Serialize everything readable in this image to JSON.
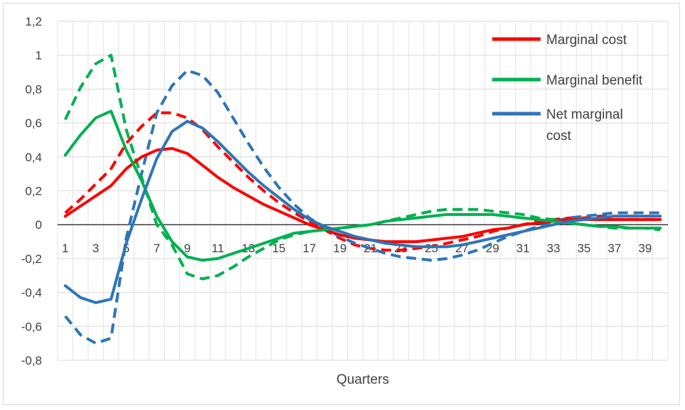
{
  "chart_data": {
    "type": "line",
    "title": "",
    "xlabel": "Quarters",
    "ylabel": "",
    "x": [
      1,
      2,
      3,
      4,
      5,
      6,
      7,
      8,
      9,
      10,
      11,
      12,
      13,
      14,
      15,
      16,
      17,
      18,
      19,
      20,
      21,
      22,
      23,
      24,
      25,
      26,
      27,
      28,
      29,
      30,
      31,
      32,
      33,
      34,
      35,
      36,
      37,
      38,
      39,
      40
    ],
    "x_tick_labels": [
      "1",
      "3",
      "5",
      "7",
      "9",
      "11",
      "13",
      "15",
      "17",
      "19",
      "21",
      "23",
      "25",
      "27",
      "29",
      "31",
      "33",
      "35",
      "37",
      "39"
    ],
    "y_tick_labels": [
      "1,2",
      "1",
      "0,8",
      "0,6",
      "0,4",
      "0,2",
      "0",
      "-0,2",
      "-0,4",
      "-0,6",
      "-0,8"
    ],
    "ylim": [
      -0.8,
      1.2
    ],
    "grid": true,
    "legend_position": "top-right",
    "legend": [
      {
        "label_lines": [
          "Marginal cost"
        ],
        "color": "#ff0000"
      },
      {
        "label_lines": [
          "Marginal benefit"
        ],
        "color": "#00b050"
      },
      {
        "label_lines": [
          "Net marginal",
          "cost"
        ],
        "color": "#2e75b6"
      }
    ],
    "series": [
      {
        "name": "Marginal cost",
        "color": "#ff0000",
        "style": "solid",
        "values": [
          0.05,
          0.11,
          0.17,
          0.23,
          0.33,
          0.4,
          0.44,
          0.45,
          0.42,
          0.35,
          0.28,
          0.22,
          0.17,
          0.12,
          0.08,
          0.04,
          0.0,
          -0.03,
          -0.06,
          -0.08,
          -0.09,
          -0.1,
          -0.1,
          -0.1,
          -0.09,
          -0.08,
          -0.07,
          -0.05,
          -0.03,
          -0.02,
          0.0,
          0.01,
          0.02,
          0.03,
          0.03,
          0.03,
          0.03,
          0.03,
          0.03,
          0.03
        ]
      },
      {
        "name": "Marginal cost",
        "color": "#ff0000",
        "style": "dashed",
        "values": [
          0.07,
          0.15,
          0.24,
          0.33,
          0.48,
          0.58,
          0.66,
          0.66,
          0.63,
          0.56,
          0.46,
          0.37,
          0.28,
          0.2,
          0.13,
          0.07,
          0.02,
          -0.03,
          -0.08,
          -0.12,
          -0.14,
          -0.15,
          -0.15,
          -0.14,
          -0.13,
          -0.11,
          -0.09,
          -0.07,
          -0.04,
          -0.02,
          0.0,
          0.02,
          0.03,
          0.04,
          0.04,
          0.05,
          0.05,
          0.05,
          0.05,
          0.05
        ]
      },
      {
        "name": "Marginal benefit",
        "color": "#00b050",
        "style": "solid",
        "values": [
          0.41,
          0.53,
          0.63,
          0.67,
          0.44,
          0.26,
          0.05,
          -0.1,
          -0.19,
          -0.21,
          -0.2,
          -0.17,
          -0.14,
          -0.11,
          -0.08,
          -0.05,
          -0.04,
          -0.03,
          -0.02,
          -0.01,
          0.0,
          0.02,
          0.03,
          0.04,
          0.05,
          0.06,
          0.06,
          0.06,
          0.06,
          0.05,
          0.04,
          0.03,
          0.02,
          0.01,
          0.0,
          -0.01,
          -0.01,
          -0.02,
          -0.02,
          -0.02
        ]
      },
      {
        "name": "Marginal benefit",
        "color": "#00b050",
        "style": "dashed",
        "values": [
          0.62,
          0.81,
          0.95,
          1.0,
          0.56,
          0.28,
          0.0,
          -0.12,
          -0.29,
          -0.32,
          -0.3,
          -0.25,
          -0.19,
          -0.14,
          -0.09,
          -0.06,
          -0.04,
          -0.03,
          -0.02,
          -0.01,
          0.0,
          0.02,
          0.04,
          0.06,
          0.08,
          0.09,
          0.09,
          0.09,
          0.08,
          0.07,
          0.06,
          0.04,
          0.03,
          0.01,
          0.0,
          -0.01,
          -0.02,
          -0.02,
          -0.02,
          -0.03
        ]
      },
      {
        "name": "Net marginal cost",
        "color": "#2e75b6",
        "style": "solid",
        "values": [
          -0.36,
          -0.43,
          -0.46,
          -0.44,
          -0.11,
          0.15,
          0.39,
          0.55,
          0.61,
          0.57,
          0.49,
          0.4,
          0.31,
          0.23,
          0.16,
          0.09,
          0.03,
          -0.01,
          -0.04,
          -0.07,
          -0.09,
          -0.11,
          -0.12,
          -0.13,
          -0.13,
          -0.13,
          -0.12,
          -0.1,
          -0.08,
          -0.06,
          -0.04,
          -0.02,
          0.0,
          0.02,
          0.03,
          0.04,
          0.05,
          0.05,
          0.05,
          0.05
        ]
      },
      {
        "name": "Net marginal cost",
        "color": "#2e75b6",
        "style": "dashed",
        "values": [
          -0.54,
          -0.65,
          -0.7,
          -0.67,
          -0.08,
          0.3,
          0.66,
          0.82,
          0.91,
          0.88,
          0.78,
          0.63,
          0.48,
          0.34,
          0.22,
          0.12,
          0.04,
          -0.02,
          -0.07,
          -0.11,
          -0.14,
          -0.17,
          -0.19,
          -0.2,
          -0.21,
          -0.2,
          -0.18,
          -0.15,
          -0.11,
          -0.07,
          -0.04,
          -0.01,
          0.02,
          0.04,
          0.05,
          0.06,
          0.07,
          0.07,
          0.07,
          0.07
        ]
      }
    ]
  }
}
